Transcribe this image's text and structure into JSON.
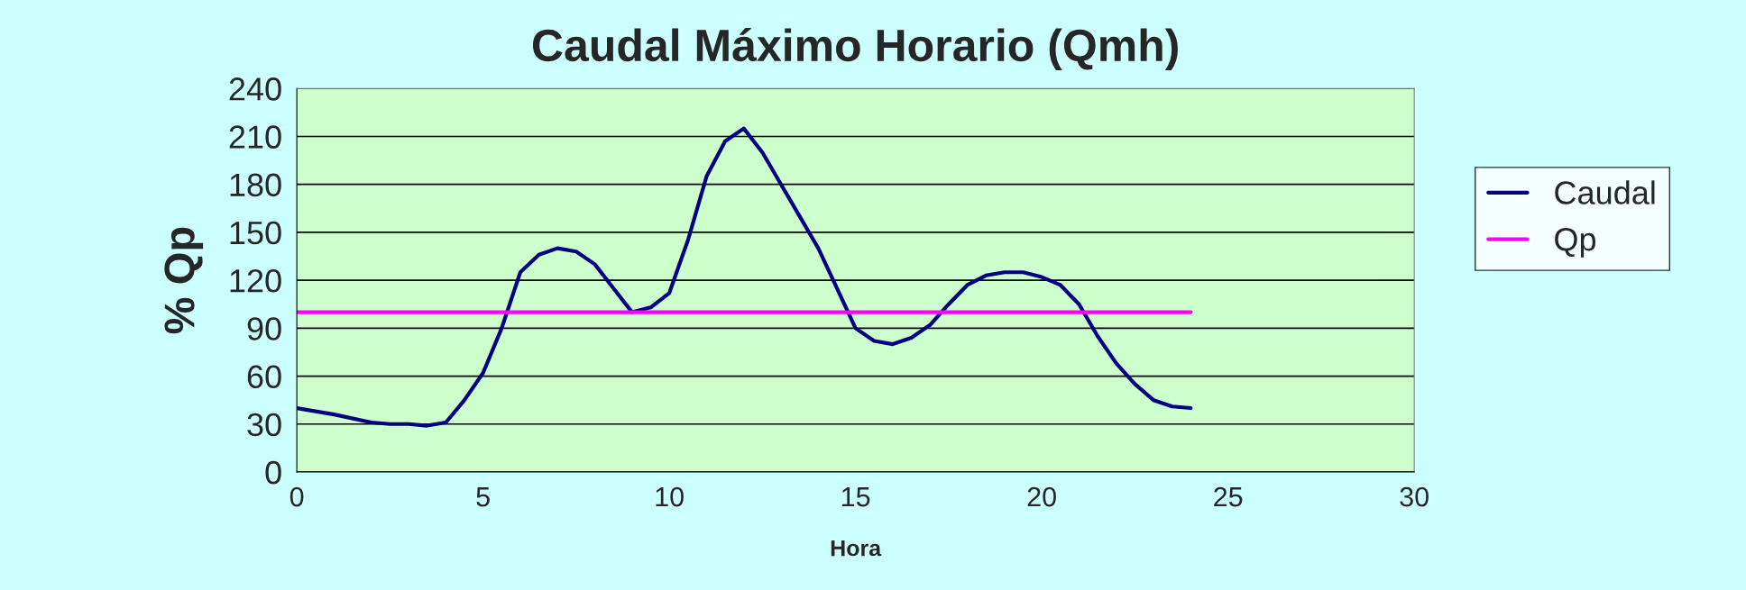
{
  "chart_data": {
    "type": "line",
    "title": "Caudal Máximo Horario (Qmh)",
    "xlabel": "Hora",
    "ylabel": "% Qp",
    "xlim": [
      0,
      30
    ],
    "xticks": [
      0,
      5,
      10,
      15,
      20,
      25,
      30
    ],
    "ylim": [
      0,
      240
    ],
    "yticks": [
      0,
      30,
      60,
      90,
      120,
      150,
      180,
      210,
      240
    ],
    "grid": "y",
    "legend": "right",
    "marker": "none",
    "line_style": "solid",
    "series": [
      {
        "name": "Caudal",
        "color": "#000080",
        "x": [
          0,
          1,
          2,
          2.5,
          3,
          3.5,
          4,
          4.5,
          5,
          5.5,
          6,
          6.5,
          7,
          7.5,
          8,
          8.5,
          9,
          9.5,
          10,
          10.5,
          11,
          11.5,
          12,
          12.5,
          13,
          13.5,
          14,
          14.5,
          15,
          15.5,
          16,
          16.5,
          17,
          17.5,
          18,
          18.5,
          19,
          19.5,
          20,
          20.5,
          21,
          21.5,
          22,
          22.5,
          23,
          23.5,
          24
        ],
        "values": [
          40,
          36,
          31,
          30,
          30,
          29,
          31,
          45,
          62,
          90,
          125,
          136,
          140,
          138,
          130,
          115,
          100,
          103,
          112,
          145,
          185,
          207,
          215,
          200,
          180,
          160,
          140,
          115,
          90,
          82,
          80,
          84,
          92,
          105,
          117,
          123,
          125,
          125,
          122,
          117,
          105,
          85,
          68,
          55,
          45,
          41,
          40
        ]
      },
      {
        "name": "Qp",
        "color": "#ff00ff",
        "x": [
          0,
          24
        ],
        "values": [
          100,
          100
        ]
      }
    ]
  }
}
